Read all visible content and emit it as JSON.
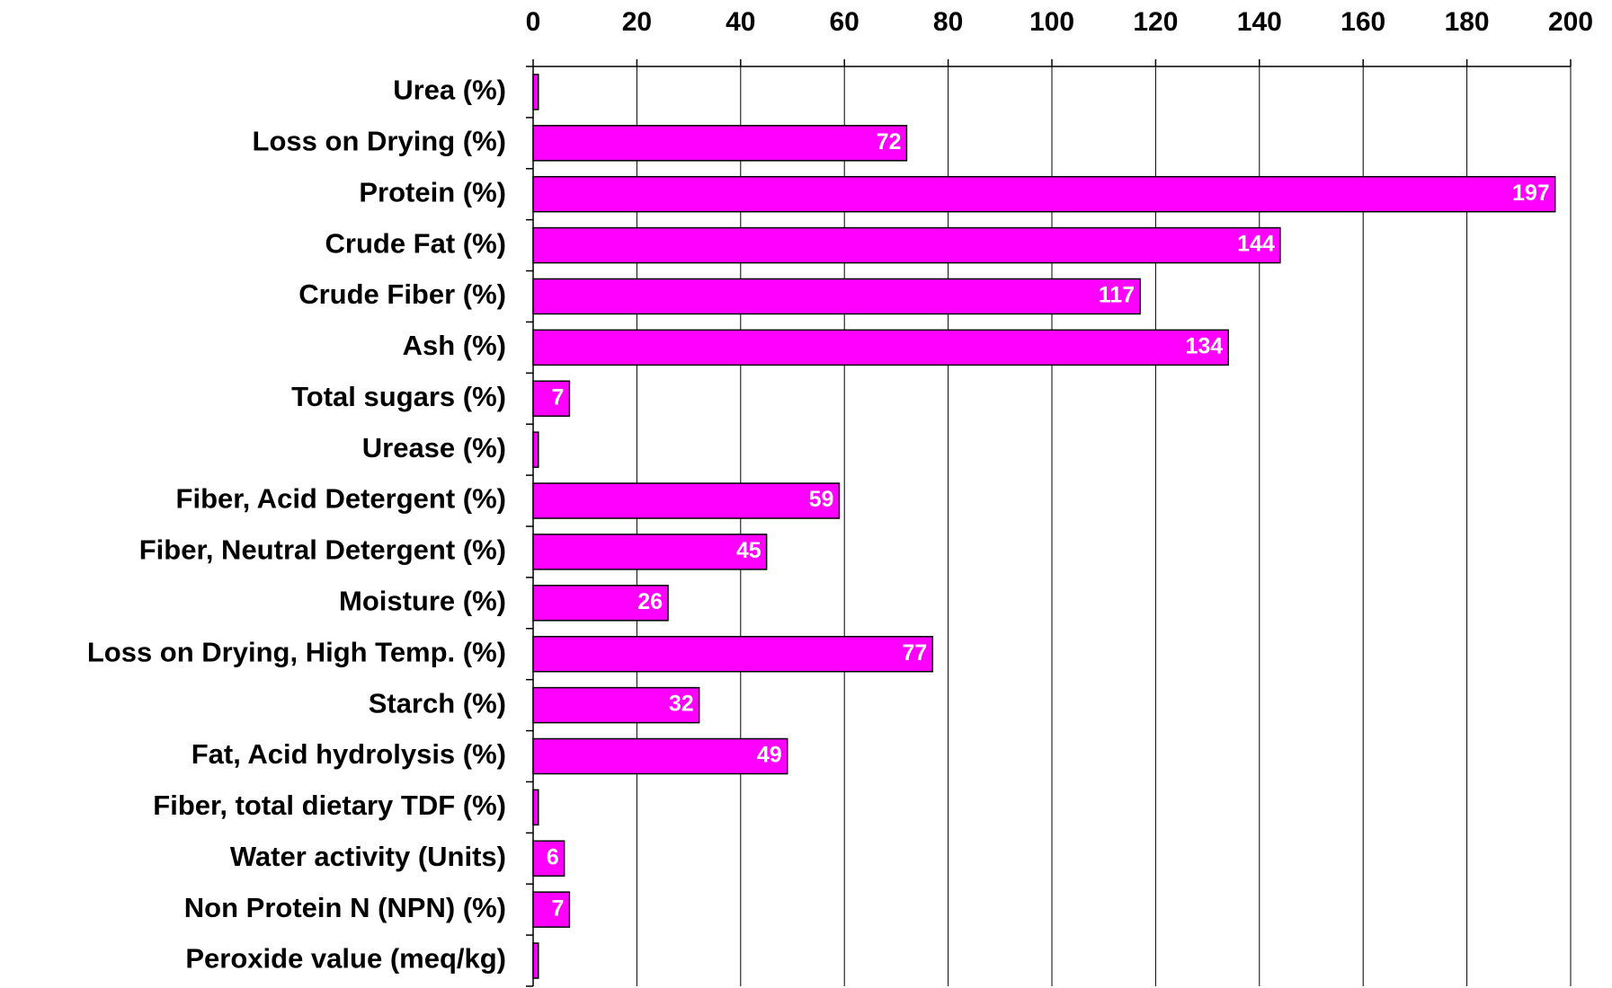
{
  "chart_data": {
    "type": "barh",
    "categories": [
      "Urea (%)",
      "Loss on Drying (%)",
      "Protein (%)",
      "Crude Fat (%)",
      "Crude Fiber (%)",
      "Ash (%)",
      "Total sugars (%)",
      "Urease (%)",
      "Fiber, Acid Detergent (%)",
      "Fiber, Neutral Detergent (%)",
      "Moisture (%)",
      "Loss on Drying, High Temp. (%)",
      "Starch (%)",
      "Fat, Acid hydrolysis (%)",
      "Fiber, total dietary TDF (%)",
      "Water activity (Units)",
      "Non Protein N (NPN) (%)",
      "Peroxide value (meq/kg)"
    ],
    "values": [
      1,
      72,
      197,
      144,
      117,
      134,
      7,
      1,
      59,
      45,
      26,
      77,
      32,
      49,
      1,
      6,
      7,
      1
    ],
    "color": "#ff00ff",
    "xlim": [
      0,
      200
    ],
    "xticks": [
      0,
      20,
      40,
      60,
      80,
      100,
      120,
      140,
      160,
      180,
      200
    ],
    "grid": true
  }
}
